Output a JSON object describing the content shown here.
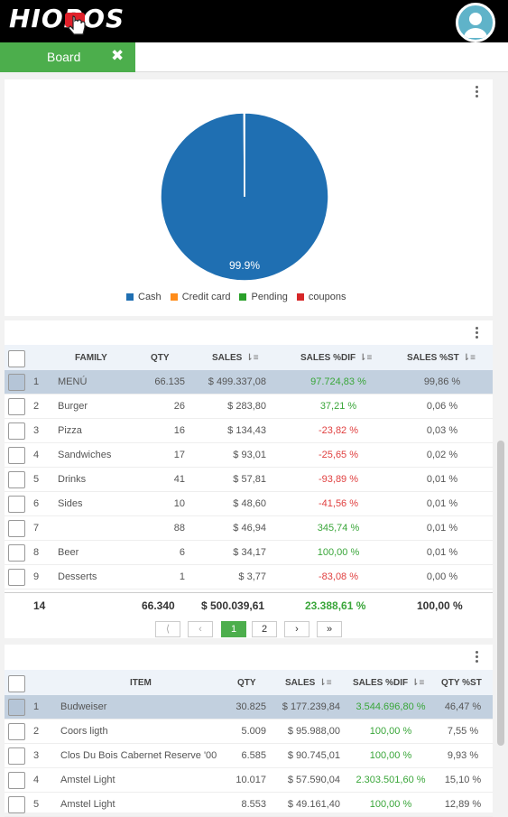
{
  "app": {
    "logo_text": "HIOPOS"
  },
  "tab": {
    "label": "Board",
    "close_icon": "✖"
  },
  "chart_data": {
    "type": "pie",
    "slices": [
      {
        "label": "Cash",
        "value": 99.9,
        "color": "#1f6fb2"
      },
      {
        "label": "Credit card",
        "value": 0.0,
        "color": "#ff8c1a"
      },
      {
        "label": "Pending",
        "value": 0.0,
        "color": "#2aa02a"
      },
      {
        "label": "coupons",
        "value": 0.1,
        "color": "#d62728"
      }
    ],
    "data_label": "99.9%",
    "legend": [
      "Cash",
      "Credit card",
      "Pending",
      "coupons"
    ],
    "legend_placement": "bottom"
  },
  "family_table": {
    "headers": {
      "family": "FAMILY",
      "qty": "QTY",
      "sales": "SALES",
      "sales_dif": "SALES %DIF",
      "sales_st": "SALES %ST"
    },
    "rows": [
      {
        "n": "1",
        "family": "MENÚ",
        "qty": "66.135",
        "sales": "$ 499.337,08",
        "dif": "97.724,83 %",
        "st": "99,86 %",
        "sign": "pos",
        "selected": true
      },
      {
        "n": "2",
        "family": "Burger",
        "qty": "26",
        "sales": "$ 283,80",
        "dif": "37,21 %",
        "st": "0,06 %",
        "sign": "pos"
      },
      {
        "n": "3",
        "family": "Pizza",
        "qty": "16",
        "sales": "$ 134,43",
        "dif": "-23,82 %",
        "st": "0,03 %",
        "sign": "neg"
      },
      {
        "n": "4",
        "family": "Sandwiches",
        "qty": "17",
        "sales": "$ 93,01",
        "dif": "-25,65 %",
        "st": "0,02 %",
        "sign": "neg"
      },
      {
        "n": "5",
        "family": "Drinks",
        "qty": "41",
        "sales": "$ 57,81",
        "dif": "-93,89 %",
        "st": "0,01 %",
        "sign": "neg"
      },
      {
        "n": "6",
        "family": "Sides",
        "qty": "10",
        "sales": "$ 48,60",
        "dif": "-41,56 %",
        "st": "0,01 %",
        "sign": "neg"
      },
      {
        "n": "7",
        "family": "",
        "qty": "88",
        "sales": "$ 46,94",
        "dif": "345,74 %",
        "st": "0,01 %",
        "sign": "pos"
      },
      {
        "n": "8",
        "family": "Beer",
        "qty": "6",
        "sales": "$ 34,17",
        "dif": "100,00 %",
        "st": "0,01 %",
        "sign": "pos"
      },
      {
        "n": "9",
        "family": "Desserts",
        "qty": "1",
        "sales": "$ 3,77",
        "dif": "-83,08 %",
        "st": "0,00 %",
        "sign": "neg"
      }
    ],
    "totals": {
      "count": "14",
      "qty": "66.340",
      "sales": "$ 500.039,61",
      "dif": "23.388,61 %",
      "st": "100,00 %"
    },
    "pager": {
      "first": "⟨",
      "prev": "‹",
      "page1": "1",
      "page2": "2",
      "next": "›",
      "last": "»"
    }
  },
  "item_table": {
    "headers": {
      "item": "ITEM",
      "qty": "QTY",
      "sales": "SALES",
      "sales_dif": "SALES %DIF",
      "qty_st": "QTY %ST"
    },
    "rows": [
      {
        "n": "1",
        "item": "Budweiser",
        "qty": "30.825",
        "sales": "$ 177.239,84",
        "dif": "3.544.696,80 %",
        "st": "46,47 %",
        "selected": true
      },
      {
        "n": "2",
        "item": "Coors ligth",
        "qty": "5.009",
        "sales": "$ 95.988,00",
        "dif": "100,00 %",
        "st": "7,55 %"
      },
      {
        "n": "3",
        "item": "Clos Du Bois Cabernet Reserve '00",
        "qty": "6.585",
        "sales": "$ 90.745,01",
        "dif": "100,00 %",
        "st": "9,93 %"
      },
      {
        "n": "4",
        "item": "Amstel Light",
        "qty": "10.017",
        "sales": "$ 57.590,04",
        "dif": "2.303.501,60 %",
        "st": "15,10 %"
      },
      {
        "n": "5",
        "item": "Amstel Light",
        "qty": "8.553",
        "sales": "$ 49.161,40",
        "dif": "100,00 %",
        "st": "12,89 %"
      }
    ]
  }
}
